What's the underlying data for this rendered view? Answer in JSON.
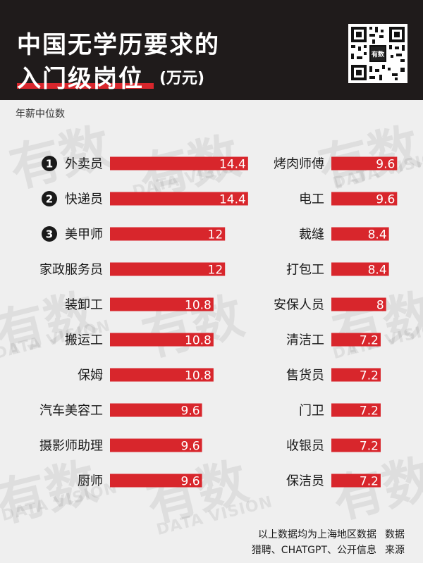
{
  "header": {
    "title_line1": "中国无学历要求的",
    "title_line2": "入门级岗位",
    "title_unit": "(万元)",
    "logo_text": "有数"
  },
  "subtitle": "年薪中位数",
  "watermark": {
    "big": "有数",
    "small": "DATA VISION"
  },
  "colors": {
    "bar": "#d8262c",
    "header_bg": "#1f1b1b",
    "background": "#efefef",
    "rank_badge": "#1a1a1a"
  },
  "chart_data": [
    {
      "type": "bar",
      "orientation": "horizontal",
      "categories": [
        "外卖员",
        "快递员",
        "美甲师",
        "家政服务员",
        "装卸工",
        "搬运工",
        "保姆",
        "汽车美容工",
        "摄影师助理",
        "厨师"
      ],
      "values": [
        14.4,
        14.4,
        12,
        12,
        10.8,
        10.8,
        10.8,
        9.6,
        9.6,
        9.6
      ],
      "rank_badges": [
        "1",
        "2",
        "3"
      ],
      "value_labels": [
        "14.4",
        "14.4",
        "12",
        "12",
        "10.8",
        "10.8",
        "10.8",
        "9.6",
        "9.6",
        "9.6"
      ]
    },
    {
      "type": "bar",
      "orientation": "horizontal",
      "categories": [
        "烤肉师傅",
        "电工",
        "裁缝",
        "打包工",
        "安保人员",
        "清洁工",
        "售货员",
        "门卫",
        "收银员",
        "保洁员"
      ],
      "values": [
        9.6,
        9.6,
        8.4,
        8.4,
        8,
        7.2,
        7.2,
        7.2,
        7.2,
        7.2
      ],
      "value_labels": [
        "9.6",
        "9.6",
        "8.4",
        "8.4",
        "8",
        "7.2",
        "7.2",
        "7.2",
        "7.2",
        "7.2"
      ]
    }
  ],
  "footer": {
    "note_line1": "以上数据均为上海地区数据",
    "note_line2": "猎聘、CHATGPT、公开信息",
    "source_label_line1": "数据",
    "source_label_line2": "来源"
  }
}
